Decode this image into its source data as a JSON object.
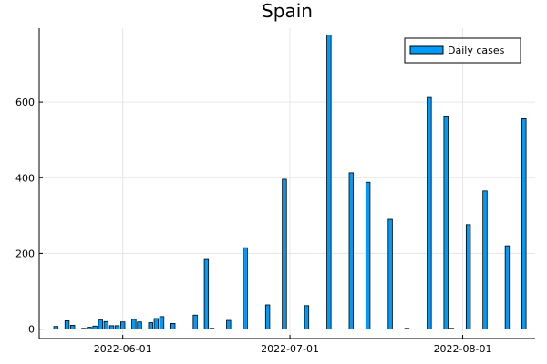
{
  "chart_data": {
    "type": "bar",
    "title": "Spain",
    "xlabel": "",
    "ylabel": "",
    "x_axis_type": "date",
    "x_ticks": [
      "2022-06-01",
      "2022-07-01",
      "2022-08-01"
    ],
    "y_ticks": [
      0,
      200,
      400,
      600
    ],
    "ylim": [
      -25,
      795
    ],
    "xlim": [
      "2022-05-17",
      "2022-08-14"
    ],
    "grid": true,
    "legend_position": "top-right",
    "series": [
      {
        "name": "Daily cases",
        "color": "#009af9",
        "points": [
          {
            "date": "2022-05-20",
            "value": 7
          },
          {
            "date": "2022-05-22",
            "value": 22
          },
          {
            "date": "2022-05-23",
            "value": 10
          },
          {
            "date": "2022-05-25",
            "value": 2
          },
          {
            "date": "2022-05-26",
            "value": 5
          },
          {
            "date": "2022-05-27",
            "value": 8
          },
          {
            "date": "2022-05-28",
            "value": 24
          },
          {
            "date": "2022-05-29",
            "value": 20
          },
          {
            "date": "2022-05-30",
            "value": 9
          },
          {
            "date": "2022-05-31",
            "value": 9
          },
          {
            "date": "2022-06-01",
            "value": 19
          },
          {
            "date": "2022-06-03",
            "value": 26
          },
          {
            "date": "2022-06-04",
            "value": 19
          },
          {
            "date": "2022-06-06",
            "value": 17
          },
          {
            "date": "2022-06-07",
            "value": 28
          },
          {
            "date": "2022-06-08",
            "value": 33
          },
          {
            "date": "2022-06-10",
            "value": 15
          },
          {
            "date": "2022-06-14",
            "value": 37
          },
          {
            "date": "2022-06-16",
            "value": 184
          },
          {
            "date": "2022-06-17",
            "value": 2
          },
          {
            "date": "2022-06-20",
            "value": 23
          },
          {
            "date": "2022-06-23",
            "value": 215
          },
          {
            "date": "2022-06-27",
            "value": 64
          },
          {
            "date": "2022-06-30",
            "value": 396
          },
          {
            "date": "2022-07-04",
            "value": 62
          },
          {
            "date": "2022-07-08",
            "value": 777
          },
          {
            "date": "2022-07-12",
            "value": 413
          },
          {
            "date": "2022-07-15",
            "value": 388
          },
          {
            "date": "2022-07-19",
            "value": 290
          },
          {
            "date": "2022-07-22",
            "value": 2
          },
          {
            "date": "2022-07-26",
            "value": 612
          },
          {
            "date": "2022-07-29",
            "value": 561
          },
          {
            "date": "2022-07-30",
            "value": 2
          },
          {
            "date": "2022-08-02",
            "value": 276
          },
          {
            "date": "2022-08-05",
            "value": 365
          },
          {
            "date": "2022-08-09",
            "value": 220
          },
          {
            "date": "2022-08-12",
            "value": 556
          }
        ]
      }
    ]
  }
}
